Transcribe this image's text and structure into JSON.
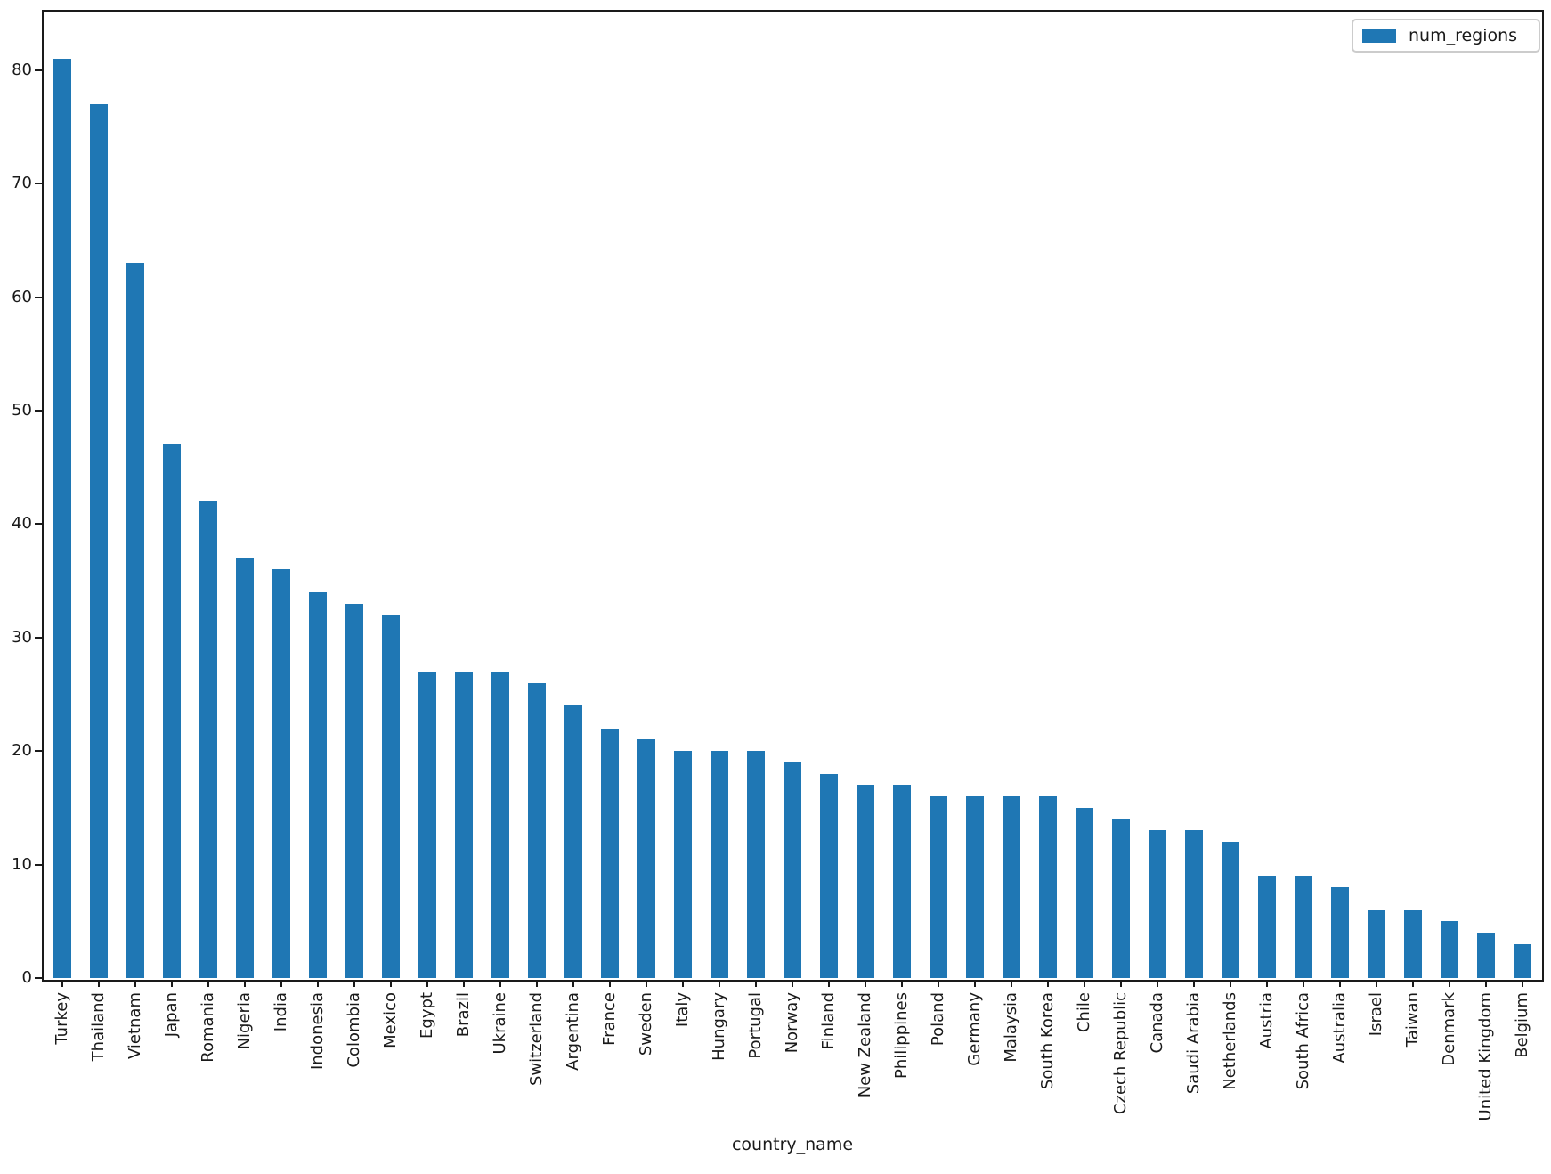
{
  "figure": {
    "title": "",
    "xlabel": "country_name",
    "legend_label": "num_regions"
  },
  "colors": {
    "bar": "#1f77b4",
    "axis": "#1a1a1a",
    "legend_border": "#cccccc",
    "background": "#ffffff"
  },
  "chart_data": {
    "type": "bar",
    "title": "",
    "xlabel": "country_name",
    "ylabel": "",
    "legend": [
      "num_regions"
    ],
    "legend_position": "upper right",
    "grid": false,
    "ylim": [
      0,
      85
    ],
    "yticks": [
      0,
      10,
      20,
      30,
      40,
      50,
      60,
      70,
      80
    ],
    "categories": [
      "Turkey",
      "Thailand",
      "Vietnam",
      "Japan",
      "Romania",
      "Nigeria",
      "India",
      "Indonesia",
      "Colombia",
      "Mexico",
      "Egypt",
      "Brazil",
      "Ukraine",
      "Switzerland",
      "Argentina",
      "France",
      "Sweden",
      "Italy",
      "Hungary",
      "Portugal",
      "Norway",
      "Finland",
      "New Zealand",
      "Philippines",
      "Poland",
      "Germany",
      "Malaysia",
      "South Korea",
      "Chile",
      "Czech Republic",
      "Canada",
      "Saudi Arabia",
      "Netherlands",
      "Austria",
      "South Africa",
      "Australia",
      "Israel",
      "Taiwan",
      "Denmark",
      "United Kingdom",
      "Belgium"
    ],
    "series": [
      {
        "name": "num_regions",
        "values": [
          81,
          77,
          63,
          47,
          42,
          37,
          36,
          34,
          33,
          32,
          27,
          27,
          27,
          26,
          24,
          22,
          21,
          20,
          20,
          20,
          19,
          18,
          17,
          17,
          16,
          16,
          16,
          16,
          15,
          14,
          13,
          13,
          12,
          9,
          9,
          8,
          6,
          6,
          5,
          4,
          3
        ]
      }
    ]
  }
}
